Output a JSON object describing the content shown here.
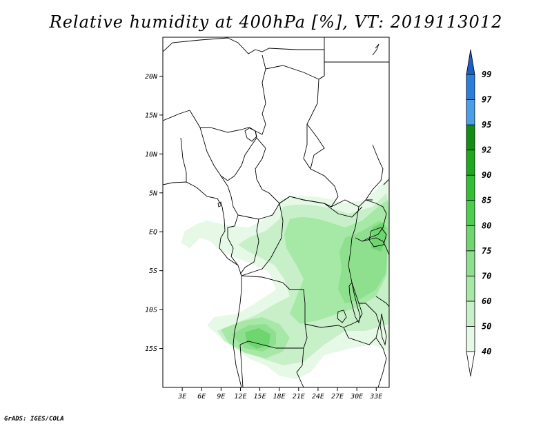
{
  "title": "Relative humidity at 400hPa [%], VT: 2019113012",
  "credit": "GrADS: IGES/COLA",
  "map": {
    "lat_labels": [
      {
        "label": "20N",
        "lat": 20
      },
      {
        "label": "15N",
        "lat": 15
      },
      {
        "label": "10N",
        "lat": 10
      },
      {
        "label": "5N",
        "lat": 5
      },
      {
        "label": "EQ",
        "lat": 0
      },
      {
        "label": "5S",
        "lat": -5
      },
      {
        "label": "10S",
        "lat": -10
      },
      {
        "label": "15S",
        "lat": -15
      }
    ],
    "lon_labels": [
      {
        "label": "3E",
        "lon": 3
      },
      {
        "label": "6E",
        "lon": 6
      },
      {
        "label": "9E",
        "lon": 9
      },
      {
        "label": "12E",
        "lon": 12
      },
      {
        "label": "15E",
        "lon": 15
      },
      {
        "label": "18E",
        "lon": 18
      },
      {
        "label": "21E",
        "lon": 21
      },
      {
        "label": "24E",
        "lon": 24
      },
      {
        "label": "27E",
        "lon": 27
      },
      {
        "label": "30E",
        "lon": 30
      },
      {
        "label": "33E",
        "lon": 33
      }
    ],
    "lon_range": [
      0,
      35
    ],
    "lat_range": [
      -20,
      25
    ]
  },
  "colorbar": {
    "levels": [
      "40",
      "50",
      "60",
      "70",
      "75",
      "80",
      "85",
      "90",
      "92",
      "95",
      "97",
      "99"
    ],
    "colors": [
      "#ffffff",
      "#e6f8e6",
      "#c8f0c8",
      "#a6e8a6",
      "#8ee08e",
      "#6fd66f",
      "#4ece4e",
      "#32c032",
      "#1ea81e",
      "#128e12",
      "#4a9eea",
      "#2a7ee0",
      "#1a5ec8"
    ]
  }
}
